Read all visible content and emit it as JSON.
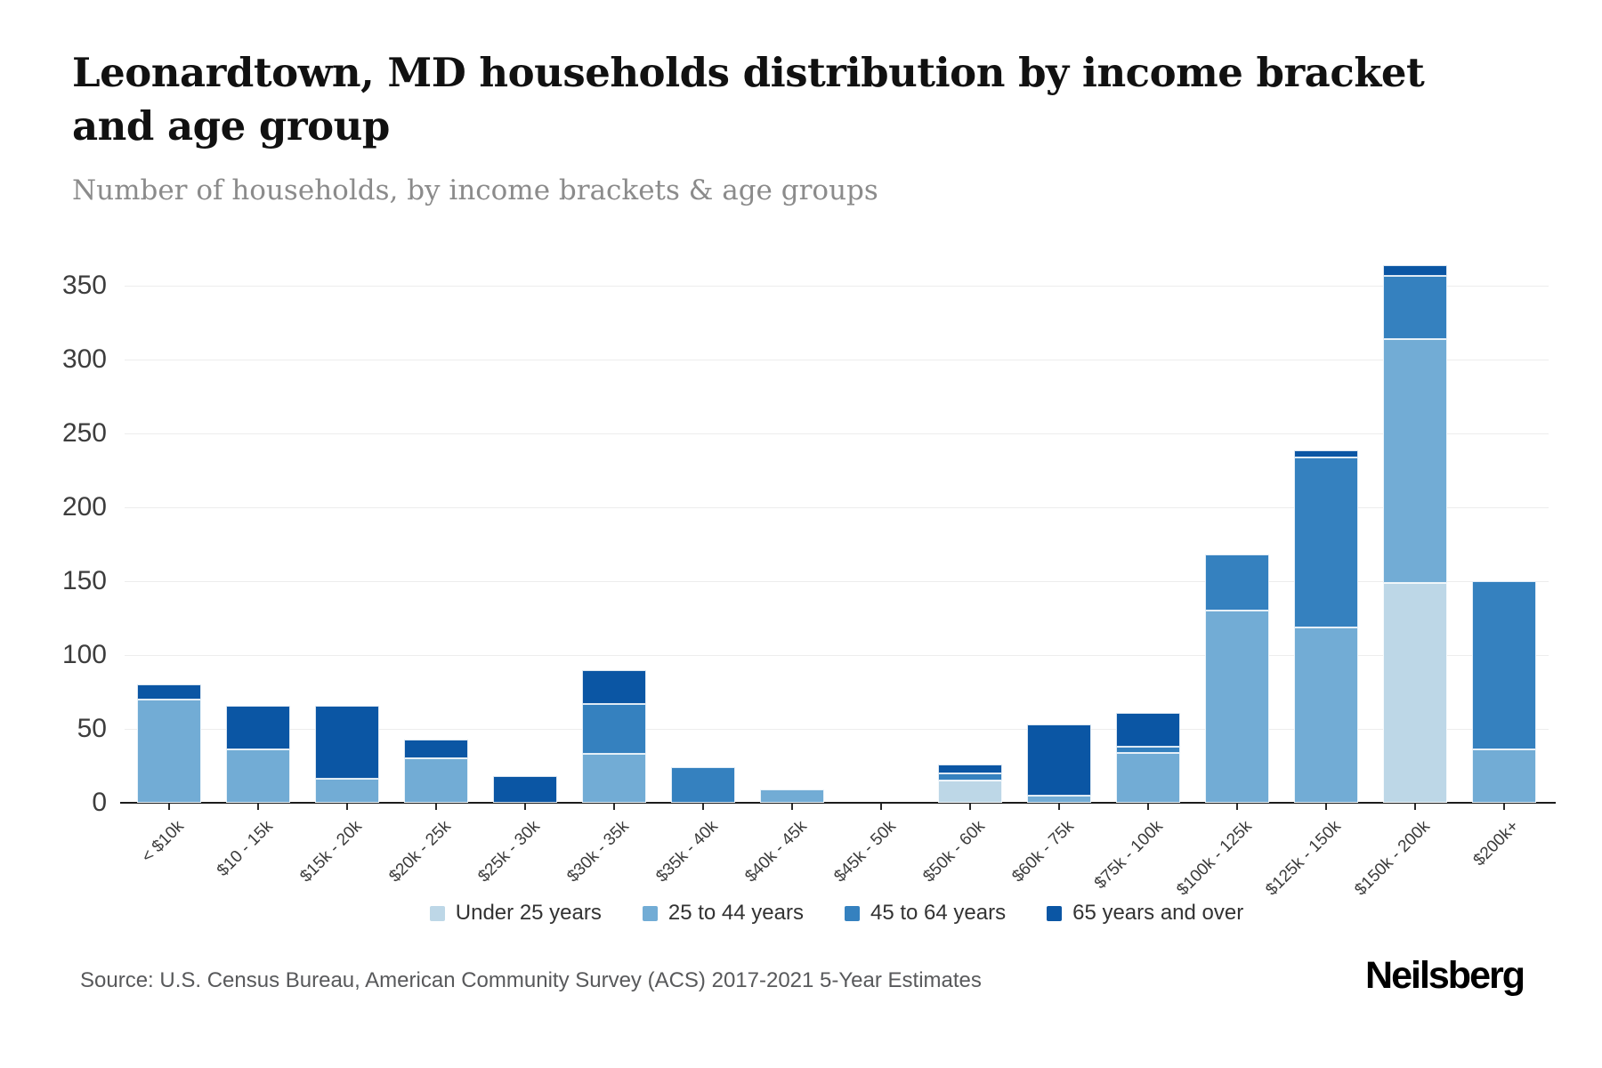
{
  "header": {
    "title": "Leonardtown, MD households distribution by income bracket and age group",
    "subtitle": "Number of households, by income brackets & age groups"
  },
  "chart_data": {
    "type": "bar",
    "stacked": true,
    "title": "Leonardtown, MD households distribution by income bracket and age group",
    "subtitle": "Number of households, by income brackets & age groups",
    "xlabel": "",
    "ylabel": "Number of households",
    "grid": true,
    "legend_position": "bottom",
    "ylim": [
      0,
      393
    ],
    "yticks": [
      0,
      50,
      100,
      150,
      200,
      250,
      300,
      350
    ],
    "categories": [
      "< $10k",
      "$10 - 15k",
      "$15k - 20k",
      "$20k - 25k",
      "$25k - 30k",
      "$30k - 35k",
      "$35k - 40k",
      "$40k - 45k",
      "$45k - 50k",
      "$50k - 60k",
      "$60k - 75k",
      "$75k - 100k",
      "$100k - 125k",
      "$125k - 150k",
      "$150k - 200k",
      "$200k+"
    ],
    "series": [
      {
        "name": "Under 25 years",
        "color": "#bdd7e7",
        "values": [
          0,
          0,
          0,
          0,
          0,
          0,
          0,
          0,
          0,
          15,
          0,
          0,
          0,
          0,
          149,
          0
        ]
      },
      {
        "name": "25 to 44 years",
        "color": "#72acd5",
        "values": [
          70,
          36,
          16,
          30,
          0,
          33,
          0,
          9,
          0,
          0,
          5,
          34,
          130,
          119,
          165,
          36
        ]
      },
      {
        "name": "45 to 64 years",
        "color": "#3581bf",
        "values": [
          0,
          0,
          0,
          0,
          0,
          34,
          24,
          0,
          0,
          5,
          0,
          4,
          38,
          115,
          43,
          114
        ]
      },
      {
        "name": "65 years and over",
        "color": "#0b56a4",
        "values": [
          10,
          30,
          50,
          13,
          18,
          23,
          0,
          0,
          0,
          6,
          48,
          23,
          0,
          5,
          7,
          0
        ]
      }
    ]
  },
  "footer": {
    "source": "Source: U.S. Census Bureau, American Community Survey (ACS) 2017-2021 5-Year Estimates",
    "logo": "Neilsberg"
  }
}
